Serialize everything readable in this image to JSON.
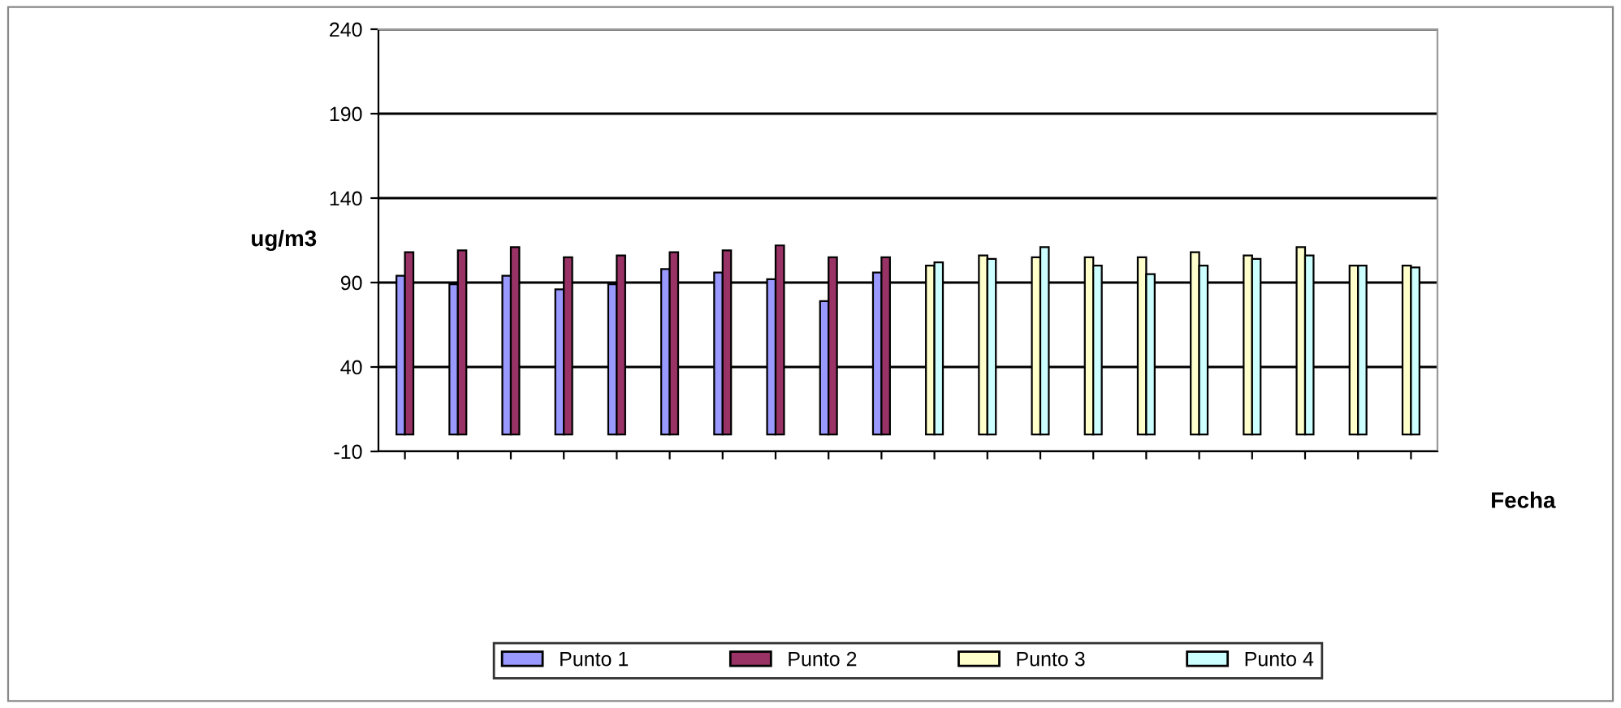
{
  "chart_data": {
    "type": "bar",
    "ylabel": "ug/m3",
    "xlabel": "Fecha",
    "categories": [
      null,
      null,
      null,
      null,
      null,
      null,
      null,
      null,
      null,
      null,
      null,
      null,
      null,
      null,
      null,
      null,
      null,
      null,
      null,
      null
    ],
    "series": [
      {
        "name": "Punto 1",
        "color": "#9999ff",
        "values": [
          94,
          89,
          94,
          86,
          89,
          98,
          96,
          92,
          79,
          96,
          null,
          null,
          null,
          null,
          null,
          null,
          null,
          null,
          null,
          null
        ]
      },
      {
        "name": "Punto 2",
        "color": "#993366",
        "values": [
          108,
          109,
          111,
          105,
          106,
          108,
          109,
          112,
          105,
          105,
          null,
          null,
          null,
          null,
          null,
          null,
          null,
          null,
          null,
          null
        ]
      },
      {
        "name": "Punto 3",
        "color": "#ffffcc",
        "values": [
          null,
          null,
          null,
          null,
          null,
          null,
          null,
          null,
          null,
          null,
          100,
          106,
          105,
          105,
          105,
          108,
          106,
          111,
          100,
          100
        ]
      },
      {
        "name": "Punto 4",
        "color": "#ccffff",
        "values": [
          null,
          null,
          null,
          null,
          null,
          null,
          null,
          null,
          null,
          null,
          102,
          104,
          111,
          100,
          95,
          100,
          104,
          106,
          100,
          99
        ]
      }
    ],
    "ylim": [
      -10,
      240
    ],
    "yticks": [
      -10,
      40,
      90,
      140,
      190,
      240
    ],
    "grid": "y",
    "legend": "bottom"
  }
}
